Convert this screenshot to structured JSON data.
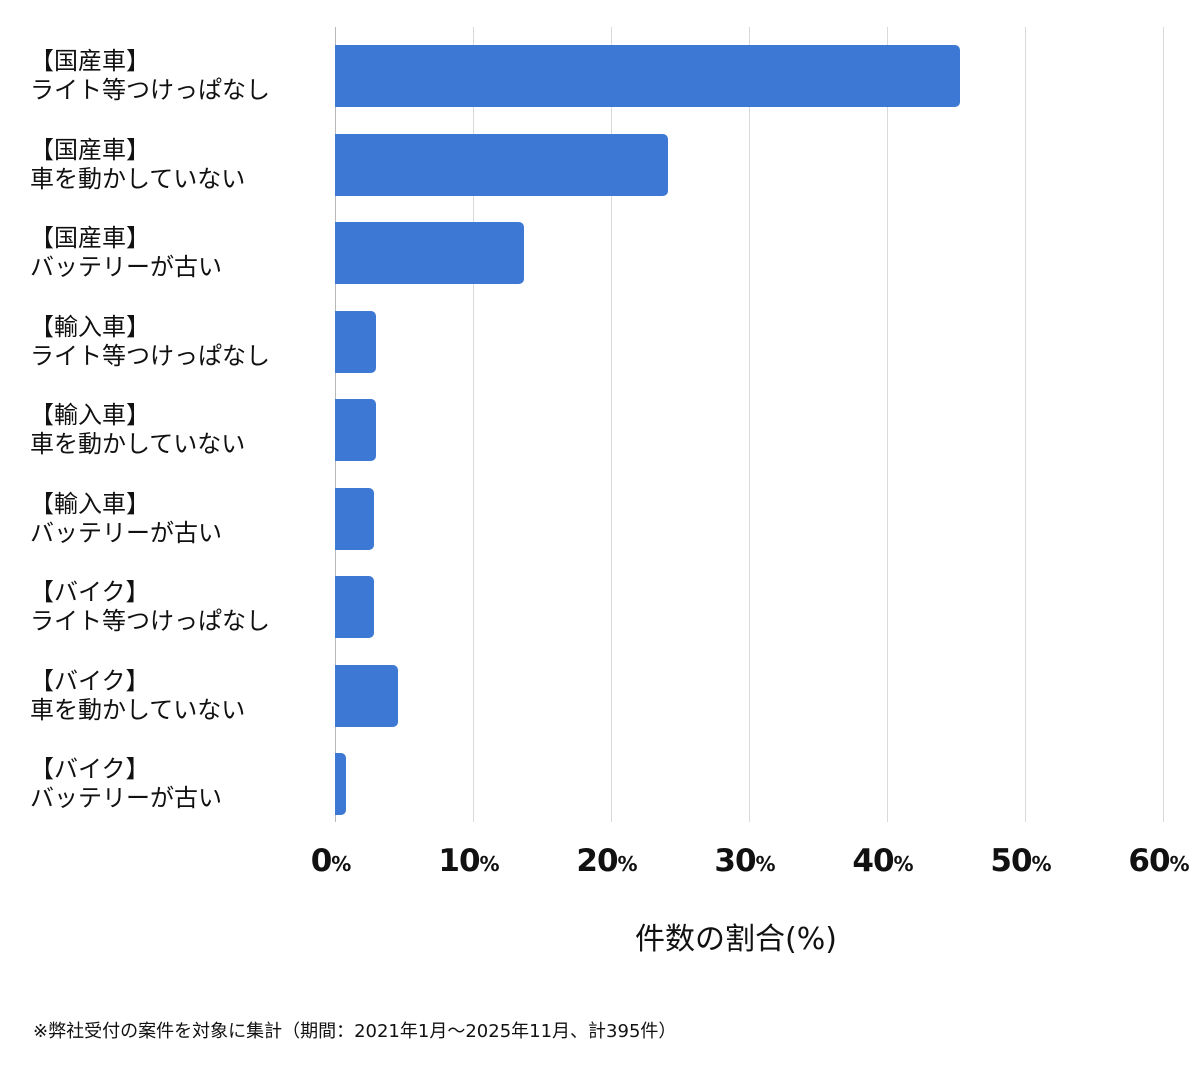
{
  "chart_data": {
    "type": "bar",
    "orientation": "horizontal",
    "title": "",
    "xlabel": "件数の割合(%)",
    "ylabel": "",
    "xlim": [
      0,
      60
    ],
    "x_ticks": [
      0,
      10,
      20,
      30,
      40,
      50,
      60
    ],
    "x_tick_labels": [
      "0",
      "10",
      "20",
      "30",
      "40",
      "50",
      "60"
    ],
    "x_tick_suffix": "%",
    "grid": true,
    "legend": null,
    "bar_color": "#3d78d4",
    "categories": [
      {
        "group": "【国産車】",
        "name": "ライト等つけっぱなし"
      },
      {
        "group": "【国産車】",
        "name": "車を動かしていない"
      },
      {
        "group": "【国産車】",
        "name": "バッテリーが古い"
      },
      {
        "group": "【輸入車】",
        "name": "ライト等つけっぱなし"
      },
      {
        "group": "【輸入車】",
        "name": "車を動かしていない"
      },
      {
        "group": "【輸入車】",
        "name": "バッテリーが古い"
      },
      {
        "group": "【バイク】",
        "name": "ライト等つけっぱなし"
      },
      {
        "group": "【バイク】",
        "name": "車を動かしていない"
      },
      {
        "group": "【バイク】",
        "name": "バッテリーが古い"
      }
    ],
    "values": [
      45.3,
      24.1,
      13.7,
      3.0,
      3.0,
      2.8,
      2.8,
      4.6,
      0.8
    ],
    "footnote": "※弊社受付の案件を対象に集計（期間：2021年1月〜2025年11月、計395件）"
  }
}
